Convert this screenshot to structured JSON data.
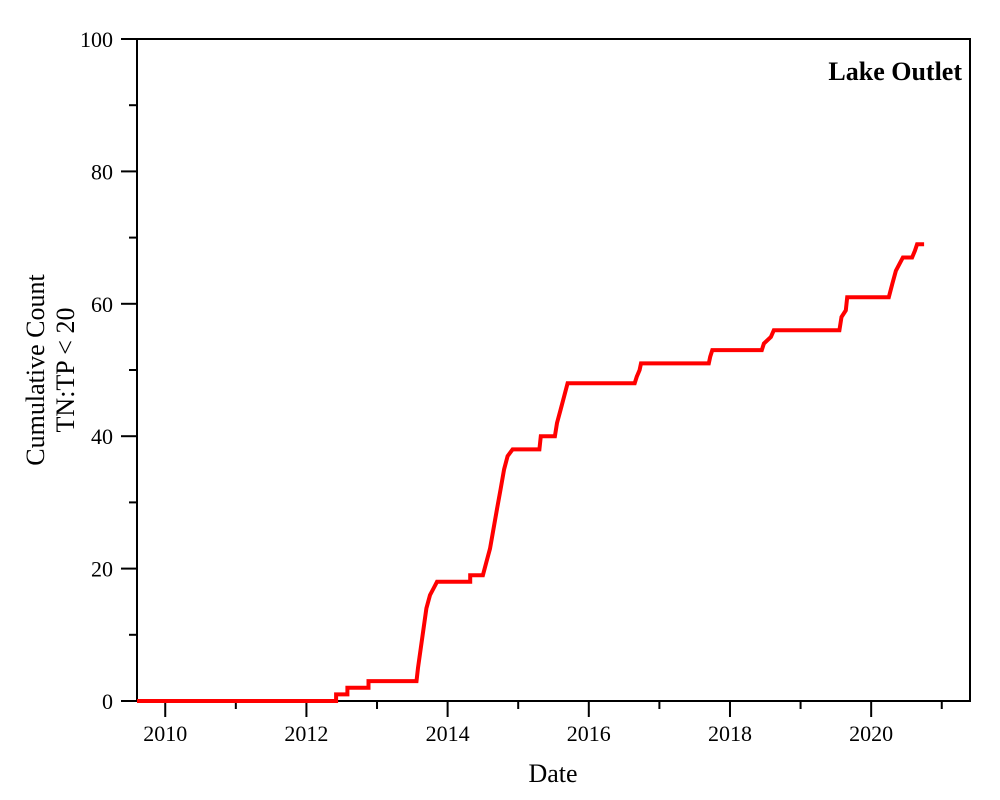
{
  "chart_data": {
    "type": "line",
    "title": "",
    "annotation": "Lake Outlet",
    "xlabel": "Date",
    "ylabel_lines": [
      "Cumulative Count",
      "TN:TP < 20"
    ],
    "xlim": [
      2009.6,
      2021.4
    ],
    "ylim": [
      0,
      100
    ],
    "x_ticks": [
      2010,
      2012,
      2014,
      2016,
      2018,
      2020
    ],
    "x_minor_ticks": [
      2011,
      2013,
      2015,
      2017,
      2019,
      2021
    ],
    "y_ticks": [
      0,
      20,
      40,
      60,
      80,
      100
    ],
    "y_minor_ticks": [
      10,
      30,
      50,
      70,
      90
    ],
    "grid": false,
    "series": [
      {
        "color": "#ff0000",
        "x": [
          2009.6,
          2012.42,
          2012.42,
          2012.58,
          2012.58,
          2012.88,
          2012.88,
          2013.56,
          2013.58,
          2013.62,
          2013.66,
          2013.7,
          2013.75,
          2013.8,
          2013.85,
          2013.88,
          2014.32,
          2014.32,
          2014.5,
          2014.55,
          2014.6,
          2014.65,
          2014.7,
          2014.75,
          2014.8,
          2014.85,
          2014.92,
          2014.96,
          2015.3,
          2015.32,
          2015.52,
          2015.55,
          2015.6,
          2015.65,
          2015.7,
          2016.65,
          2016.68,
          2016.72,
          2016.74,
          2017.7,
          2017.72,
          2017.75,
          2018.45,
          2018.48,
          2018.58,
          2018.62,
          2018.66,
          2019.55,
          2019.58,
          2019.64,
          2019.66,
          2019.7,
          2020.25,
          2020.3,
          2020.35,
          2020.4,
          2020.45,
          2020.58,
          2020.62,
          2020.65,
          2020.75
        ],
        "y": [
          0,
          0,
          1,
          1,
          2,
          2,
          3,
          3,
          5,
          8,
          11,
          14,
          16,
          17,
          18,
          18,
          18,
          19,
          19,
          21,
          23,
          26,
          29,
          32,
          35,
          37,
          38,
          38,
          38,
          40,
          40,
          42,
          44,
          46,
          48,
          48,
          49,
          50,
          51,
          51,
          52,
          53,
          53,
          54,
          55,
          56,
          56,
          56,
          58,
          59,
          61,
          61,
          61,
          63,
          65,
          66,
          67,
          67,
          68,
          69,
          69
        ]
      }
    ]
  }
}
